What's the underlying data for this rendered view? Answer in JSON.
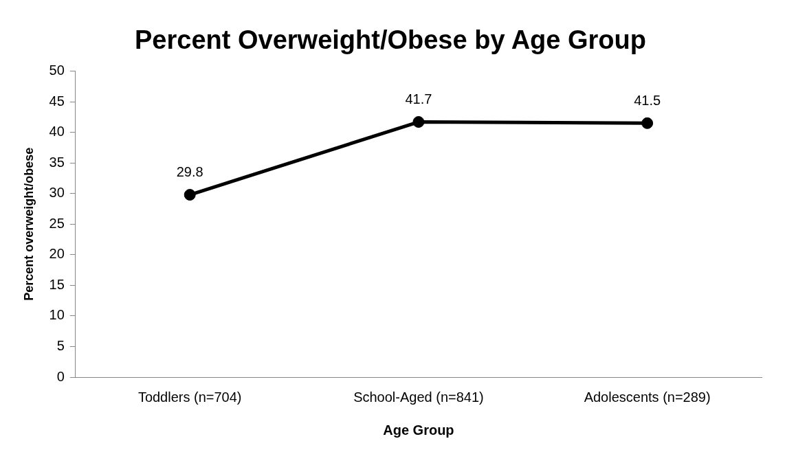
{
  "chart_data": {
    "type": "line",
    "title": "Percent Overweight/Obese by Age Group",
    "xlabel": "Age Group",
    "ylabel": "Percent overweight/obese",
    "categories": [
      "Toddlers (n=704)",
      "School-Aged (n=841)",
      "Adolescents (n=289)"
    ],
    "series": [
      {
        "color": "#000000",
        "values": [
          29.8,
          41.7,
          41.5
        ]
      }
    ],
    "ylim": [
      0,
      50
    ],
    "yticks": [
      0,
      5,
      10,
      15,
      20,
      25,
      30,
      35,
      40,
      45,
      50
    ],
    "grid": false,
    "legend": false,
    "marker": "circle",
    "line_style": "solid",
    "data_labels": true
  }
}
